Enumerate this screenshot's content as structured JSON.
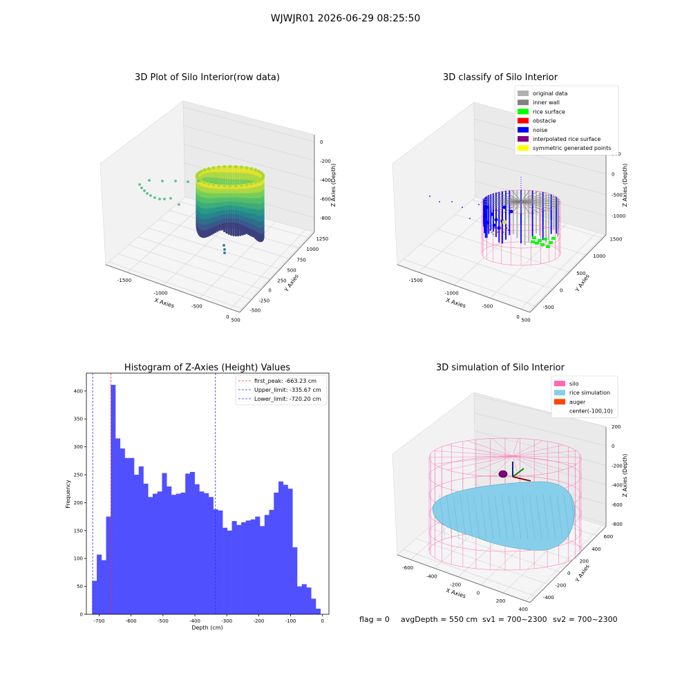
{
  "figure_title": "WJWJR01 2026-06-29 08:25:50",
  "status_line": {
    "flag": "flag = 0",
    "avg_depth": "avgDepth = 550 cm",
    "sv1": "sv1 = 700~2300",
    "sv2": "sv2 = 700~2300"
  },
  "colors": {
    "histogram_bar": "#5050ff",
    "first_peak_line": "#ff2a2a",
    "limit_lines": "#2a2aff",
    "silo_wire": "#ff69b4",
    "rice_simulation": "#87ceeb",
    "auger": "#ff4500",
    "classify_original": "#b0b0b0",
    "classify_inner_wall": "#808080",
    "classify_rice_surface": "#00ff00",
    "classify_obstacle": "#ff0000",
    "classify_noise": "#0000ff",
    "classify_interpolated": "#800080",
    "classify_symmetric": "#ffff00"
  },
  "chart_data": [
    {
      "type": "scatter",
      "projection": "3d",
      "title": "3D Plot of Silo Interior(row data)",
      "xlabel": "X Axies",
      "ylabel": "Y Axies",
      "zlabel": "Z Axies (Depth)",
      "xticks": [
        "-1500",
        "-1000",
        "-500",
        "0",
        "500"
      ],
      "yticks": [
        "-500",
        "-250",
        "0",
        "250",
        "500",
        "750",
        "1000",
        "1250"
      ],
      "zticks": [
        "0",
        "-200",
        "-400",
        "-600",
        "-800"
      ],
      "colormap": "viridis",
      "grid": true
    },
    {
      "type": "scatter",
      "projection": "3d",
      "title": "3D classify of Silo Interior",
      "xlabel": "X Axies",
      "ylabel": "Y Axies",
      "zlabel": "Z Axies (Depth)",
      "xticks": [
        "-1500",
        "-1000",
        "-500",
        "0",
        "500"
      ],
      "yticks": [
        "-500",
        "0",
        "500",
        "1000",
        "1500"
      ],
      "zticks": [
        "500",
        "0",
        "-500",
        "-1000"
      ],
      "legend": [
        "original data",
        "inner wall",
        "rice surface",
        "obstacle",
        "noise",
        "interpolated rice surface",
        "symmetric generated points"
      ],
      "legend_position": "top-right",
      "grid": true
    },
    {
      "type": "bar",
      "title": "Histogram of Z-Axies (Height) Values",
      "xlabel": "Depth (cm)",
      "ylabel": "Frequency",
      "xlim": [
        -740,
        20
      ],
      "ylim": [
        0,
        432
      ],
      "xticks": [
        -700,
        -600,
        -500,
        -400,
        -300,
        -200,
        -100,
        0
      ],
      "yticks": [
        0,
        50,
        100,
        150,
        200,
        250,
        300,
        350,
        400
      ],
      "bin_start": -722,
      "bin_width": 14.6,
      "values": [
        60,
        107,
        97,
        175,
        411,
        315,
        297,
        280,
        280,
        250,
        265,
        234,
        210,
        216,
        220,
        253,
        229,
        214,
        216,
        218,
        252,
        255,
        233,
        220,
        217,
        210,
        188,
        186,
        155,
        150,
        167,
        160,
        165,
        168,
        170,
        175,
        158,
        178,
        187,
        218,
        238,
        232,
        225,
        120,
        50,
        54,
        48,
        28,
        10
      ],
      "vlines": [
        {
          "label": "first_peak: -663.23 cm",
          "x": -663.23,
          "color": "#ff2a2a"
        },
        {
          "label": "Upper_limit: -335.67 cm",
          "x": -335.67,
          "color": "#2a2aff"
        },
        {
          "label": "Lower_limit: -720.20 cm",
          "x": -720.2,
          "color": "#2a2aff"
        }
      ],
      "legend_position": "top-right"
    },
    {
      "type": "scatter",
      "projection": "3d",
      "title": "3D simulation of Silo Interior",
      "xlabel": "X Axies",
      "ylabel": "Y Axies",
      "zlabel": "Z Axies (Depth)",
      "xticks": [
        "-600",
        "-400",
        "-200",
        "0",
        "200",
        "400"
      ],
      "yticks": [
        "-400",
        "-200",
        "0",
        "200",
        "400",
        "600"
      ],
      "zticks": [
        "200",
        "0",
        "-200",
        "-400",
        "-600",
        "-800"
      ],
      "legend": [
        "silo",
        "rice simulation",
        "auger",
        "center(-100,10)"
      ],
      "legend_position": "top-right",
      "grid": true
    }
  ]
}
